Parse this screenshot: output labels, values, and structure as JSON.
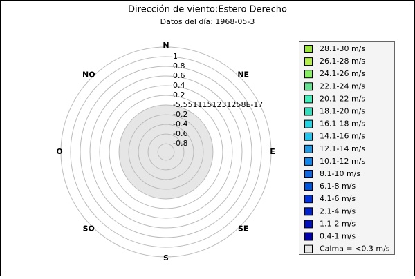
{
  "chart_data": {
    "type": "windrose",
    "title": "Dirección de viento:Estero Derecho",
    "subtitle": "Datos del día: 1968-05-3",
    "directions": [
      "N",
      "NE",
      "E",
      "SE",
      "S",
      "SO",
      "O",
      "NO"
    ],
    "rlim": [
      -0.97,
      1.2
    ],
    "rticks": [
      1,
      0.8,
      0.6,
      0.4,
      0.2,
      {
        "value": -5.5511151231258e-17,
        "label": "-5.5511151231258E-17"
      },
      -0.2,
      -0.4,
      -0.6,
      -0.8
    ],
    "series": [
      {
        "name": "28.1-30 m/s",
        "color": "#9be33f"
      },
      {
        "name": "26.1-28 m/s",
        "color": "#b4ee4c"
      },
      {
        "name": "24.1-26 m/s",
        "color": "#88ee66"
      },
      {
        "name": "22.1-24 m/s",
        "color": "#66e090"
      },
      {
        "name": "20.1-22 m/s",
        "color": "#44eebb"
      },
      {
        "name": "18.1-20 m/s",
        "color": "#33ddbb"
      },
      {
        "name": "16.1-18 m/s",
        "color": "#22d4e4"
      },
      {
        "name": "14.1-16 m/s",
        "color": "#22c4ee"
      },
      {
        "name": "12.1-14 m/s",
        "color": "#2299e0"
      },
      {
        "name": "10.1-12 m/s",
        "color": "#1188ee"
      },
      {
        "name": "8.1-10 m/s",
        "color": "#1166dd"
      },
      {
        "name": "6.1-8 m/s",
        "color": "#0055dd"
      },
      {
        "name": "4.1-6 m/s",
        "color": "#0033dd"
      },
      {
        "name": "2.1-4 m/s",
        "color": "#0022cc"
      },
      {
        "name": "1.1-2 m/s",
        "color": "#0011bb"
      },
      {
        "name": "0.4-1 m/s",
        "color": "#0000aa"
      }
    ],
    "calm": {
      "name": "Calma = <0.3 m/s",
      "color": "#e6e6e6"
    }
  }
}
